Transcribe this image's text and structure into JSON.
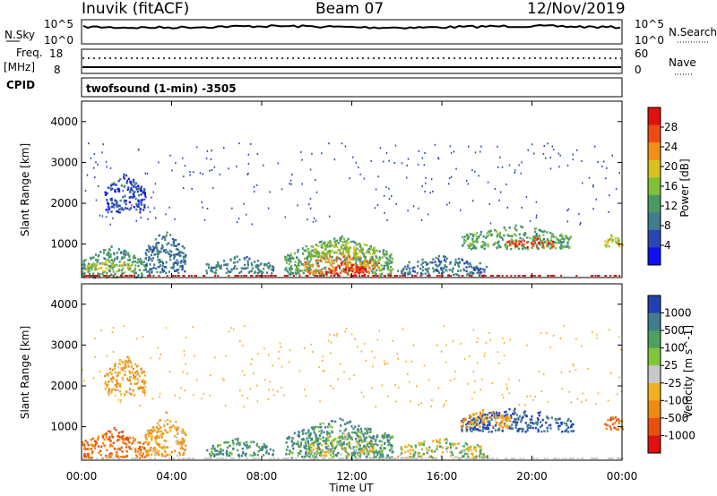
{
  "header": {
    "station": "Inuvik (fitACF)",
    "beam": "Beam 07",
    "date": "12/Nov/2019"
  },
  "noise_panel": {
    "left_label": "N.Sky",
    "left_ticks": [
      "10^5",
      "10^0"
    ],
    "right_ticks": [
      "10^5",
      "10^0"
    ],
    "right_label": "N.Search"
  },
  "freq_panel": {
    "left_label_1": "Freq.",
    "left_label_2": "[MHz]",
    "left_ticks": [
      "18",
      "8"
    ],
    "right_ticks": [
      "60",
      "0"
    ],
    "right_label": "Nave"
  },
  "cpid_panel": {
    "label": "CPID",
    "mode": "twofsound (1-min) -3505"
  },
  "time_axis": {
    "ticks": [
      "00:00",
      "04:00",
      "08:00",
      "12:00",
      "16:00",
      "20:00",
      "00:00"
    ],
    "label": "Time UT"
  },
  "colors": {
    "power": [
      "#1010ee",
      "#2a48b5",
      "#3f7d8f",
      "#4b9a62",
      "#7fbf3a",
      "#d7c21f",
      "#f0901a",
      "#ee4a14",
      "#e01010"
    ],
    "velocity": [
      "#2440b0",
      "#3f7d8f",
      "#4fa060",
      "#7fc63a",
      "#c8c8c8",
      "#f0b020",
      "#ee8a14",
      "#e85010",
      "#e01010"
    ]
  },
  "chart_data": [
    {
      "type": "heatmap",
      "title": "",
      "ylabel": "Slant Range [km]",
      "xlabel": "",
      "xlim": [
        0,
        24
      ],
      "ylim": [
        180,
        4500
      ],
      "yticks": [
        "4000",
        "3000",
        "2000",
        "1000"
      ],
      "colorbar": {
        "label": "Power [dB]",
        "ticks": [
          "28",
          "24",
          "20",
          "16",
          "12",
          "8",
          "4"
        ],
        "range": [
          0,
          30
        ]
      },
      "regions": [
        {
          "t_start": 0.0,
          "t_end": 2.8,
          "r_min": 200,
          "r_max": 1000,
          "value": 11
        },
        {
          "t_start": 0.2,
          "t_end": 2.2,
          "r_min": 350,
          "r_max": 650,
          "value": 17
        },
        {
          "t_start": 1.0,
          "t_end": 2.8,
          "r_min": 1800,
          "r_max": 2800,
          "value": 5
        },
        {
          "t_start": 2.8,
          "t_end": 4.6,
          "r_min": 300,
          "r_max": 1400,
          "value": 8
        },
        {
          "t_start": 5.5,
          "t_end": 8.5,
          "r_min": 300,
          "r_max": 750,
          "value": 9
        },
        {
          "t_start": 9.0,
          "t_end": 13.8,
          "r_min": 250,
          "r_max": 1250,
          "value": 12
        },
        {
          "t_start": 10.0,
          "t_end": 13.0,
          "r_min": 700,
          "r_max": 1150,
          "value": 16
        },
        {
          "t_start": 9.8,
          "t_end": 13.2,
          "r_min": 300,
          "r_max": 800,
          "value": 22
        },
        {
          "t_start": 10.8,
          "t_end": 12.6,
          "r_min": 250,
          "r_max": 600,
          "value": 28
        },
        {
          "t_start": 14.0,
          "t_end": 18.0,
          "r_min": 250,
          "r_max": 750,
          "value": 8
        },
        {
          "t_start": 16.8,
          "t_end": 21.8,
          "r_min": 900,
          "r_max": 1500,
          "value": 12
        },
        {
          "t_start": 18.8,
          "t_end": 21.0,
          "r_min": 950,
          "r_max": 1200,
          "value": 25
        },
        {
          "t_start": 23.2,
          "t_end": 24.0,
          "r_min": 950,
          "r_max": 1300,
          "value": 18
        }
      ]
    },
    {
      "type": "heatmap",
      "title": "",
      "ylabel": "Slant Range [km]",
      "xlabel": "Time UT",
      "xlim": [
        0,
        24
      ],
      "ylim": [
        180,
        4500
      ],
      "yticks": [
        "4000",
        "3000",
        "2000",
        "1000"
      ],
      "colorbar": {
        "label": "Velocity [m s^-1]",
        "ticks": [
          "1000",
          "500",
          "100",
          "25",
          "-25",
          "-100",
          "-500",
          "-1000"
        ],
        "range": [
          -1000,
          1000
        ]
      },
      "regions": [
        {
          "t_start": 0.0,
          "t_end": 2.8,
          "r_min": 250,
          "r_max": 1000,
          "value": -500
        },
        {
          "t_start": 1.0,
          "t_end": 2.8,
          "r_min": 1800,
          "r_max": 2800,
          "value": -100
        },
        {
          "t_start": 2.8,
          "t_end": 4.6,
          "r_min": 300,
          "r_max": 1400,
          "value": -100
        },
        {
          "t_start": 5.5,
          "t_end": 8.5,
          "r_min": 300,
          "r_max": 750,
          "value": 100
        },
        {
          "t_start": 9.0,
          "t_end": 13.8,
          "r_min": 250,
          "r_max": 1250,
          "value": 100
        },
        {
          "t_start": 10.0,
          "t_end": 13.0,
          "r_min": 300,
          "r_max": 900,
          "value": 0
        },
        {
          "t_start": 14.0,
          "t_end": 18.0,
          "r_min": 250,
          "r_max": 750,
          "value": 0
        },
        {
          "t_start": 16.8,
          "t_end": 21.8,
          "r_min": 900,
          "r_max": 1500,
          "value": 500
        },
        {
          "t_start": 16.8,
          "t_end": 19.0,
          "r_min": 1000,
          "r_max": 1450,
          "value": -100
        },
        {
          "t_start": 23.2,
          "t_end": 24.0,
          "r_min": 950,
          "r_max": 1300,
          "value": -500
        }
      ]
    }
  ]
}
